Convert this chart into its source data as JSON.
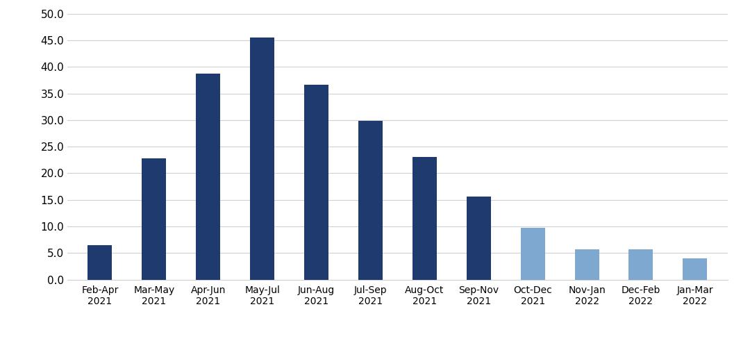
{
  "categories": [
    "Feb-Apr\n2021",
    "Mar-May\n2021",
    "Apr-Jun\n2021",
    "May-Jul\n2021",
    "Jun-Aug\n2021",
    "Jul-Sep\n2021",
    "Aug-Oct\n2021",
    "Sep-Nov\n2021",
    "Oct-Dec\n2021",
    "Nov-Jan\n2022",
    "Dec-Feb\n2022",
    "Jan-Mar\n2022"
  ],
  "values": [
    6.5,
    22.8,
    38.7,
    45.5,
    36.7,
    29.8,
    23.0,
    15.6,
    9.7,
    5.7,
    5.7,
    4.0
  ],
  "bar_colors": [
    "#1f3a6e",
    "#1f3a6e",
    "#1f3a6e",
    "#1f3a6e",
    "#1f3a6e",
    "#1f3a6e",
    "#1f3a6e",
    "#1f3a6e",
    "#7fa8d0",
    "#7fa8d0",
    "#7fa8d0",
    "#7fa8d0"
  ],
  "ylim": [
    0,
    50
  ],
  "yticks": [
    0.0,
    5.0,
    10.0,
    15.0,
    20.0,
    25.0,
    30.0,
    35.0,
    40.0,
    45.0,
    50.0
  ],
  "background_color": "#ffffff",
  "grid_color": "#d0d0d0",
  "tick_fontsize": 11,
  "label_fontsize": 10,
  "bar_width": 0.45
}
